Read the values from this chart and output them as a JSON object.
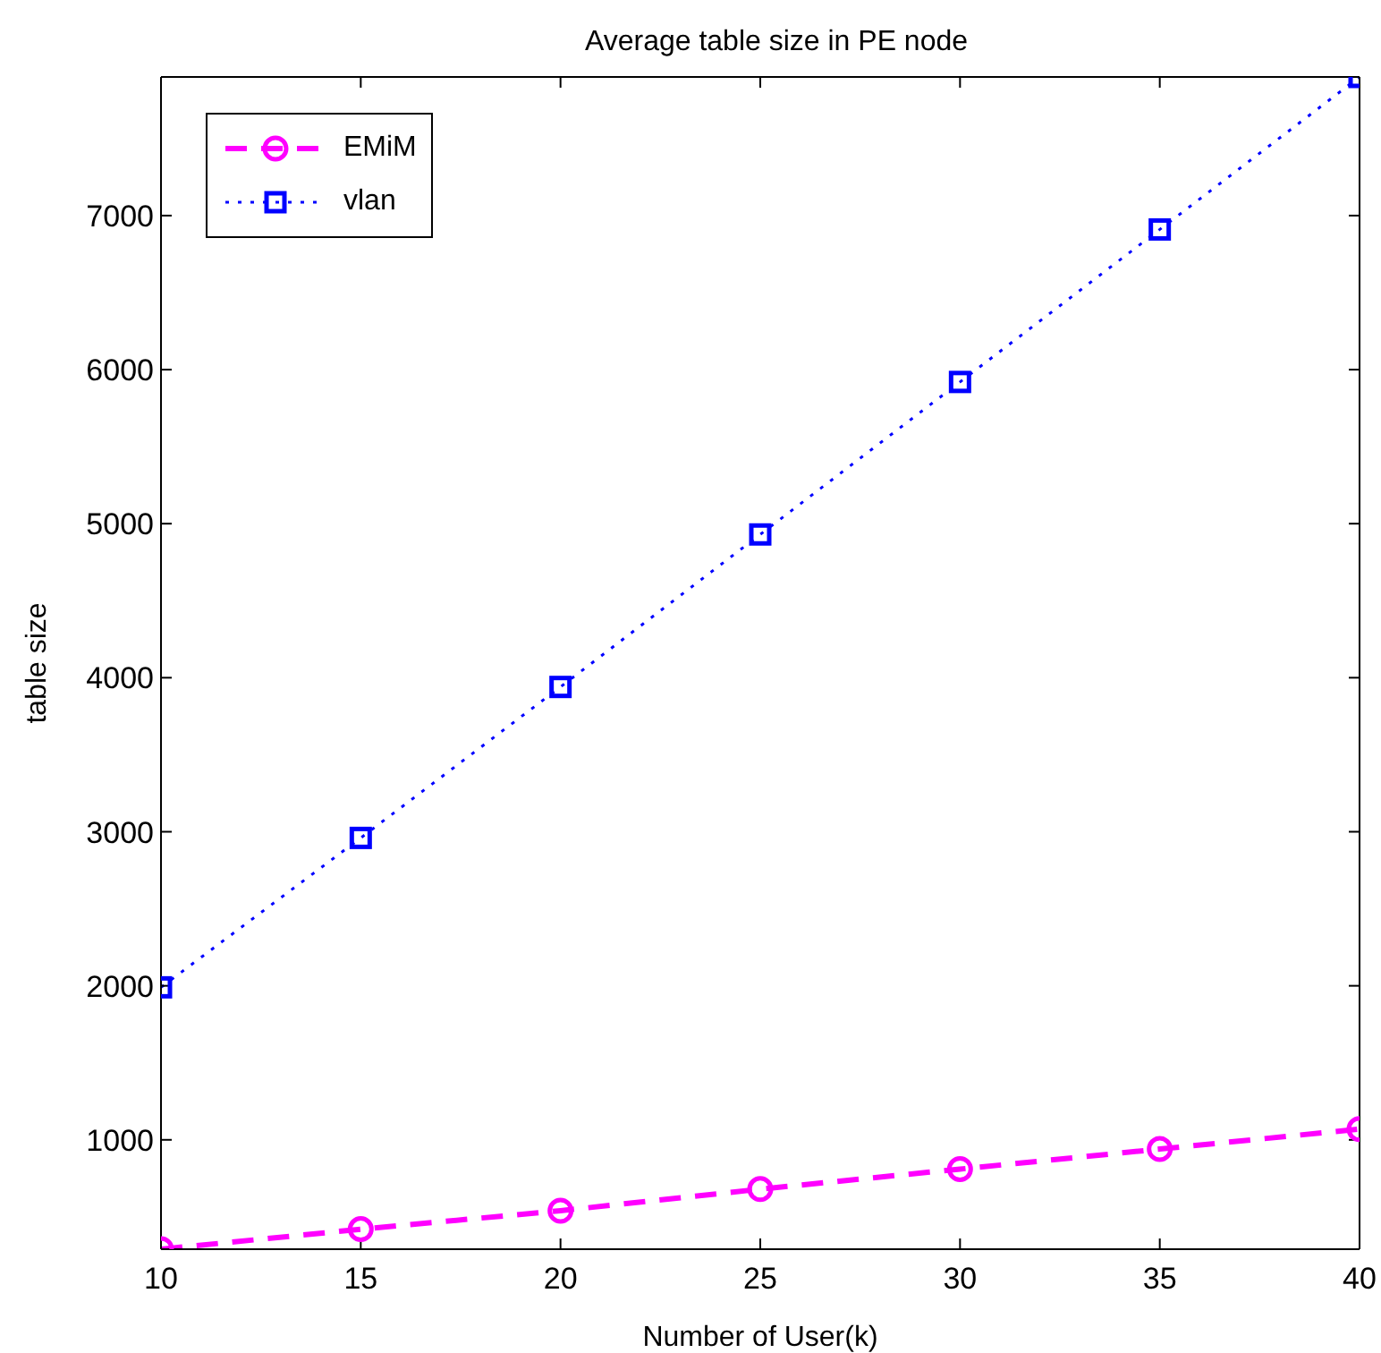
{
  "chart_data": {
    "type": "line",
    "title": "Average table size in PE node",
    "xlabel": "Number of  User(k)",
    "ylabel": "table size",
    "x": [
      10,
      15,
      20,
      25,
      30,
      35,
      40
    ],
    "series": [
      {
        "name": "EMiM",
        "color": "#ff00ff",
        "marker": "circle",
        "line_style": "dashed",
        "values": [
          290,
          420,
          540,
          680,
          810,
          940,
          1070
        ]
      },
      {
        "name": "vlan",
        "color": "#0000ff",
        "marker": "square",
        "line_style": "dotted",
        "values": [
          1990,
          2960,
          3940,
          4930,
          5920,
          6910,
          7900
        ]
      }
    ],
    "xlim": [
      10,
      40
    ],
    "xticks": [
      10,
      15,
      20,
      25,
      30,
      35,
      40
    ],
    "ylim": [
      290,
      7900
    ],
    "yticks": [
      1000,
      2000,
      3000,
      4000,
      5000,
      6000,
      7000
    ],
    "grid": false,
    "legend": "top left"
  }
}
